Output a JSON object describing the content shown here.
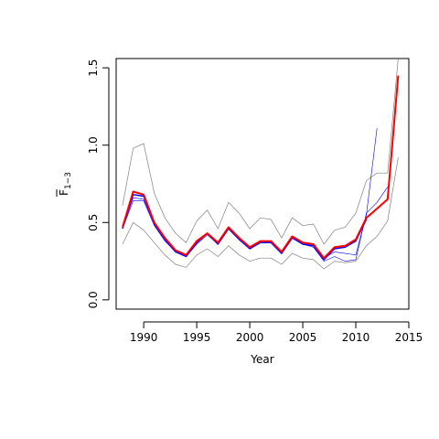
{
  "chart_data": {
    "type": "line",
    "xlabel": "Year",
    "ylabel": {
      "main": "F",
      "sub": "1−3"
    },
    "xlim": [
      1987.4,
      2015.0
    ],
    "ylim": [
      -0.06,
      1.56
    ],
    "x_ticks": [
      1990,
      1995,
      2000,
      2005,
      2010,
      2015
    ],
    "y_ticks": [
      0.0,
      0.5,
      1.0,
      1.5
    ],
    "x_tick_labels": [
      "1990",
      "1995",
      "2000",
      "2005",
      "2010",
      "2015"
    ],
    "y_tick_labels": [
      "0.0",
      "0.5",
      "1.0",
      "1.5"
    ],
    "grid": false,
    "colors": {
      "main": "#ff0000",
      "retro": "#0000ff",
      "bounds": "#808080"
    },
    "series": [
      {
        "color": "#808080",
        "width": 0.7,
        "x": [
          1988,
          1989,
          1990,
          1991,
          1992,
          1993,
          1994,
          1995,
          1996,
          1997,
          1998,
          1999,
          2000,
          2001,
          2002,
          2003,
          2004,
          2005,
          2006,
          2007,
          2008,
          2009,
          2010,
          2011,
          2012,
          2013,
          2014
        ],
        "y": [
          0.61,
          0.98,
          1.01,
          0.69,
          0.53,
          0.43,
          0.37,
          0.51,
          0.58,
          0.46,
          0.63,
          0.56,
          0.46,
          0.53,
          0.52,
          0.4,
          0.53,
          0.48,
          0.49,
          0.36,
          0.45,
          0.47,
          0.56,
          0.77,
          0.82,
          0.82,
          1.56
        ]
      },
      {
        "color": "#808080",
        "width": 0.7,
        "x": [
          1988,
          1989,
          1990,
          1991,
          1992,
          1993,
          1994,
          1995,
          1996,
          1997,
          1998,
          1999,
          2000,
          2001,
          2002,
          2003,
          2004,
          2005,
          2006,
          2007,
          2008,
          2009,
          2010,
          2011,
          2012,
          2013,
          2014
        ],
        "y": [
          0.36,
          0.5,
          0.45,
          0.37,
          0.29,
          0.23,
          0.21,
          0.29,
          0.33,
          0.28,
          0.35,
          0.29,
          0.25,
          0.27,
          0.27,
          0.23,
          0.3,
          0.27,
          0.26,
          0.2,
          0.25,
          0.24,
          0.25,
          0.35,
          0.41,
          0.51,
          0.92
        ]
      },
      {
        "color": "#0000ff",
        "width": 0.6,
        "x": [
          1988,
          1989,
          1990,
          1991,
          1992,
          1993,
          1994,
          1995,
          1996,
          1997,
          1998,
          1999,
          2000,
          2001,
          2002,
          2003,
          2004,
          2005,
          2006,
          2007,
          2008,
          2009,
          2010,
          2011,
          2012
        ],
        "y": [
          0.46,
          0.64,
          0.64,
          0.48,
          0.38,
          0.31,
          0.29,
          0.37,
          0.43,
          0.37,
          0.46,
          0.4,
          0.34,
          0.38,
          0.37,
          0.31,
          0.4,
          0.37,
          0.36,
          0.27,
          0.31,
          0.3,
          0.29,
          0.55,
          1.11
        ]
      },
      {
        "color": "#0000ff",
        "width": 0.6,
        "x": [
          1988,
          1989,
          1990,
          1991,
          1992,
          1993,
          1994,
          1995,
          1996,
          1997,
          1998,
          1999,
          2000,
          2001,
          2002,
          2003,
          2004,
          2005,
          2006,
          2007,
          2008,
          2009,
          2010,
          2011,
          2012,
          2013
        ],
        "y": [
          0.47,
          0.66,
          0.65,
          0.49,
          0.39,
          0.31,
          0.28,
          0.36,
          0.42,
          0.36,
          0.46,
          0.39,
          0.33,
          0.37,
          0.37,
          0.3,
          0.4,
          0.36,
          0.34,
          0.25,
          0.28,
          0.25,
          0.26,
          0.56,
          0.63,
          0.73
        ]
      },
      {
        "color": "#0000ff",
        "width": 1.4,
        "x": [
          1988,
          1989,
          1990,
          1991,
          1992,
          1993,
          1994,
          1995,
          1996,
          1997,
          1998,
          1999,
          2000,
          2001,
          2002,
          2003,
          2004,
          2005,
          2006,
          2007,
          2008,
          2009,
          2010,
          2011
        ],
        "y": [
          0.46,
          0.68,
          0.67,
          0.49,
          0.39,
          0.31,
          0.28,
          0.37,
          0.43,
          0.36,
          0.46,
          0.39,
          0.33,
          0.37,
          0.37,
          0.3,
          0.4,
          0.36,
          0.35,
          0.26,
          0.33,
          0.34,
          0.38,
          0.52
        ]
      },
      {
        "color": "#ff0000",
        "width": 2.0,
        "x": [
          1988,
          1989,
          1990,
          1991,
          1992,
          1993,
          1994,
          1995,
          1996,
          1997,
          1998,
          1999,
          2000,
          2001,
          2002,
          2003,
          2004,
          2005,
          2006,
          2007,
          2008,
          2009,
          2010,
          2011,
          2012,
          2013,
          2014
        ],
        "y": [
          0.47,
          0.7,
          0.68,
          0.5,
          0.4,
          0.32,
          0.29,
          0.38,
          0.43,
          0.37,
          0.47,
          0.4,
          0.34,
          0.38,
          0.38,
          0.31,
          0.41,
          0.37,
          0.36,
          0.27,
          0.34,
          0.35,
          0.39,
          0.53,
          0.59,
          0.65,
          1.45
        ]
      }
    ]
  }
}
